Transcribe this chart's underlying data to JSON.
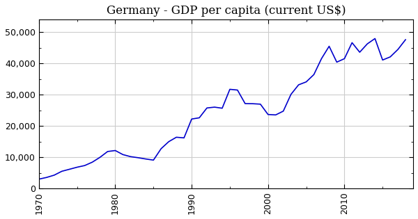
{
  "title": "Germany - GDP per capita (current US$)",
  "title_fontsize": 12,
  "line_color": "#0000CC",
  "line_width": 1.2,
  "background_color": "#ffffff",
  "grid_color": "#cccccc",
  "xlabel": "",
  "ylabel": "",
  "ylim": [
    0,
    54000
  ],
  "yticks": [
    0,
    10000,
    20000,
    30000,
    40000,
    50000
  ],
  "xlim": [
    1970,
    2019
  ],
  "xticks": [
    1970,
    1980,
    1990,
    2000,
    2010
  ],
  "years": [
    1970,
    1971,
    1972,
    1973,
    1974,
    1975,
    1976,
    1977,
    1978,
    1979,
    1980,
    1981,
    1982,
    1983,
    1984,
    1985,
    1986,
    1987,
    1988,
    1989,
    1990,
    1991,
    1992,
    1993,
    1994,
    1995,
    1996,
    1997,
    1998,
    1999,
    2000,
    2001,
    2002,
    2003,
    2004,
    2005,
    2006,
    2007,
    2008,
    2009,
    2010,
    2011,
    2012,
    2013,
    2014,
    2015,
    2016,
    2017,
    2018
  ],
  "values": [
    3034,
    3573,
    4302,
    5543,
    6190,
    6844,
    7380,
    8468,
    10011,
    11865,
    12178,
    10881,
    10227,
    9882,
    9471,
    9118,
    12763,
    15009,
    16426,
    16219,
    22242,
    22636,
    25780,
    26044,
    25701,
    31742,
    31505,
    27175,
    27140,
    26996,
    23691,
    23560,
    24769,
    30120,
    33175,
    34117,
    36449,
    41552,
    45499,
    40423,
    41532,
    46646,
    43593,
    46268,
    47959,
    41103,
    42103,
    44469,
    47603
  ]
}
